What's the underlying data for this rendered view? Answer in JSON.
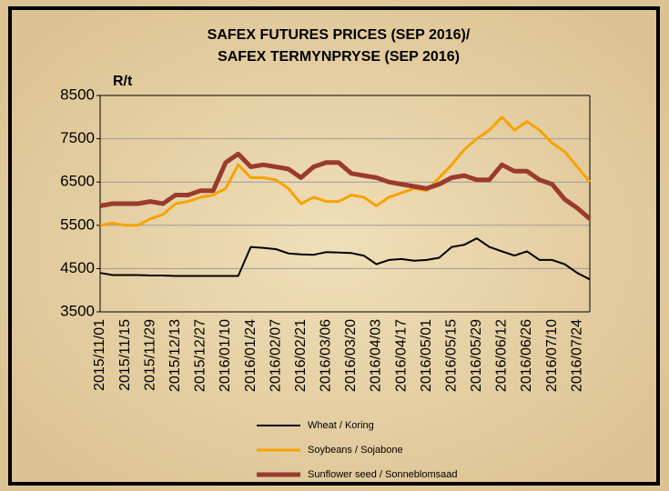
{
  "chart_data": {
    "type": "line",
    "title": [
      "SAFEX FUTURES PRICES (SEP 2016)/",
      "SAFEX TERMYNPRYSE (SEP 2016)"
    ],
    "y_label": "R/t",
    "categories": [
      "2015/11/01",
      null,
      "2015/11/15",
      null,
      "2015/11/29",
      null,
      "2015/12/13",
      null,
      "2015/12/27",
      null,
      "2016/01/10",
      null,
      "2016/01/24",
      null,
      "2016/02/07",
      null,
      "2016/02/21",
      null,
      "2016/03/06",
      null,
      "2016/03/20",
      null,
      "2016/04/03",
      null,
      "2016/04/17",
      null,
      "2016/05/01",
      null,
      "2016/05/15",
      null,
      "2016/05/29",
      null,
      "2016/06/12",
      null,
      "2016/06/26",
      null,
      "2016/07/10",
      null,
      "2016/07/24",
      null
    ],
    "series": [
      {
        "name": "Wheat / Koring",
        "color": "#000000",
        "width": 2,
        "values": [
          4400,
          4350,
          4350,
          4350,
          4340,
          4340,
          4330,
          4330,
          4330,
          4330,
          4330,
          4330,
          5000,
          4980,
          4950,
          4850,
          4830,
          4820,
          4880,
          4870,
          4860,
          4800,
          4600,
          4700,
          4720,
          4680,
          4700,
          4750,
          5000,
          5050,
          5200,
          5000,
          4900,
          4800,
          4900,
          4700,
          4700,
          4600,
          4400,
          4250
        ]
      },
      {
        "name": "Soybeans / Sojabone",
        "color": "#f7a300",
        "width": 3,
        "values": [
          5500,
          5550,
          5500,
          5500,
          5650,
          5750,
          6000,
          6050,
          6150,
          6200,
          6350,
          6900,
          6600,
          6600,
          6550,
          6350,
          6000,
          6150,
          6050,
          6050,
          6200,
          6150,
          5950,
          6150,
          6250,
          6350,
          6300,
          6600,
          6900,
          7250,
          7500,
          7700,
          8000,
          7700,
          7900,
          7700,
          7400,
          7200,
          6850,
          6500
        ]
      },
      {
        "name": "Sunflower seed / Sonneblomsaad",
        "color": "#9a3b2c",
        "width": 5,
        "values": [
          5950,
          6000,
          6000,
          6000,
          6050,
          6000,
          6200,
          6200,
          6300,
          6300,
          6950,
          7150,
          6850,
          6900,
          6850,
          6800,
          6600,
          6850,
          6950,
          6950,
          6700,
          6650,
          6600,
          6500,
          6450,
          6400,
          6350,
          6450,
          6600,
          6650,
          6550,
          6550,
          6900,
          6750,
          6750,
          6550,
          6450,
          6100,
          5900,
          5650
        ]
      }
    ],
    "ylim": [
      3500,
      8500
    ],
    "yticks": [
      3500,
      4500,
      5500,
      6500,
      7500,
      8500
    ],
    "grid": true
  }
}
